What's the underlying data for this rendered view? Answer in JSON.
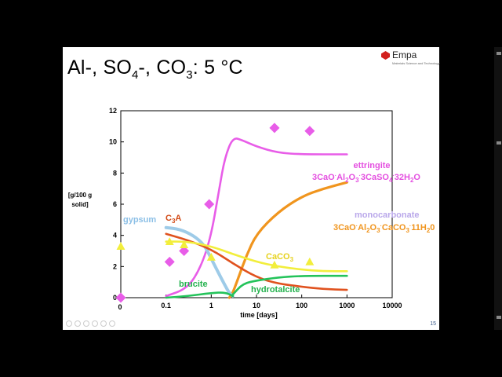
{
  "slide": {
    "title_parts": [
      "Al-, SO",
      "4",
      "-, CO",
      "3",
      ": 5 °C"
    ],
    "logo_text": "Empa",
    "logo_tag": "Materials Science and Technology",
    "slide_number": "15"
  },
  "colors": {
    "ettringite": "#e85de8",
    "monocarbonate": "#f0951e",
    "gypsum": "#9ecbe8",
    "c3a": "#e0521f",
    "caco3": "#f2ee3c",
    "brucite": "#23c35a",
    "hydrotalcite": "#23c35a",
    "label_ettringite": "#e44fe0",
    "label_mono": "#b9a7ea",
    "label_mono_formula": "#f0951e",
    "label_gypsum": "#8bbfe6",
    "label_c3a": "#d24a16",
    "label_caco3": "#e6d21e",
    "label_green": "#23b14d"
  },
  "chart_data": {
    "type": "line",
    "xscale": "log",
    "xlim": [
      0.01,
      10000
    ],
    "ylim": [
      0,
      12
    ],
    "yticks": [
      "0",
      "2",
      "4",
      "6",
      "8",
      "10",
      "12"
    ],
    "xticks": [
      "0.1",
      "1",
      "10",
      "100",
      "1000",
      "10000"
    ],
    "x_zero_label": "0",
    "y_zero_label": "0",
    "xlabel": "time [days]",
    "ylabel": [
      "[g/100 g",
      "solid]"
    ],
    "series": [
      {
        "name": "ettringite",
        "x": [
          0.1,
          0.3,
          0.6,
          1,
          1.5,
          2,
          3,
          5,
          10,
          30,
          100,
          1000
        ],
        "y": [
          0.1,
          0.6,
          2.0,
          4.0,
          7.0,
          9.0,
          10.3,
          10.1,
          9.7,
          9.3,
          9.2,
          9.2
        ]
      },
      {
        "name": "monocarbonate",
        "x": [
          2.5,
          3,
          4,
          6,
          10,
          30,
          100,
          300,
          1000
        ],
        "y": [
          0,
          0.3,
          1.3,
          2.7,
          4.1,
          5.5,
          6.5,
          7.0,
          7.4
        ]
      },
      {
        "name": "gypsum",
        "x": [
          0.1,
          0.2,
          0.4,
          0.7,
          1,
          1.5,
          2,
          2.5,
          3
        ],
        "y": [
          4.5,
          4.4,
          4.0,
          3.4,
          2.5,
          1.5,
          0.8,
          0.3,
          0.1
        ]
      },
      {
        "name": "C3A",
        "x": [
          0.1,
          0.3,
          1,
          3,
          10,
          30,
          100,
          300,
          1000
        ],
        "y": [
          4.1,
          3.7,
          3.1,
          2.2,
          1.3,
          0.9,
          0.7,
          0.55,
          0.5
        ]
      },
      {
        "name": "CaCO3",
        "x": [
          0.1,
          0.3,
          1,
          3,
          10,
          30,
          100,
          300,
          1000
        ],
        "y": [
          3.6,
          3.6,
          3.3,
          2.8,
          2.3,
          2.0,
          1.8,
          1.7,
          1.7
        ]
      },
      {
        "name": "brucite",
        "x": [
          0.1,
          0.3,
          1,
          2,
          3
        ],
        "y": [
          0,
          0.1,
          0.3,
          0.35,
          0.1
        ]
      },
      {
        "name": "hydrotalcite",
        "x": [
          3,
          5,
          10,
          30,
          100,
          1000
        ],
        "y": [
          0.2,
          0.9,
          1.1,
          1.3,
          1.4,
          1.4
        ]
      }
    ],
    "markers": [
      {
        "series": "ettringite",
        "shape": "diamond",
        "x": [
          0.01,
          0.12,
          0.25,
          0.9,
          25,
          150
        ],
        "y": [
          0,
          2.3,
          3.0,
          6.0,
          10.9,
          10.7
        ]
      },
      {
        "series": "CaCO3",
        "shape": "triangle",
        "x": [
          0.01,
          0.12,
          0.25,
          1,
          25,
          150
        ],
        "y": [
          3.3,
          3.6,
          3.4,
          2.6,
          2.1,
          2.3
        ]
      }
    ],
    "labels": {
      "ettringite": "ettringite",
      "ettringite_formula": [
        "3CaO",
        "·",
        "Al",
        "2",
        "O",
        "3",
        "·",
        "3CaSO",
        "4",
        "·",
        "32H",
        "2",
        "O"
      ],
      "monocarbonate": "monocarbonate",
      "mono_formula": [
        "3CaO",
        "·",
        "Al",
        "2",
        "O",
        "3",
        "·",
        "CaCO",
        "3",
        "·",
        "11H",
        "2",
        "0"
      ],
      "gypsum": "gypsum",
      "c3a": [
        "C",
        "3",
        "A"
      ],
      "caco3": [
        "CaCO",
        "3"
      ],
      "brucite": "brucite",
      "hydrotalcite": "hydrotalcite"
    }
  }
}
